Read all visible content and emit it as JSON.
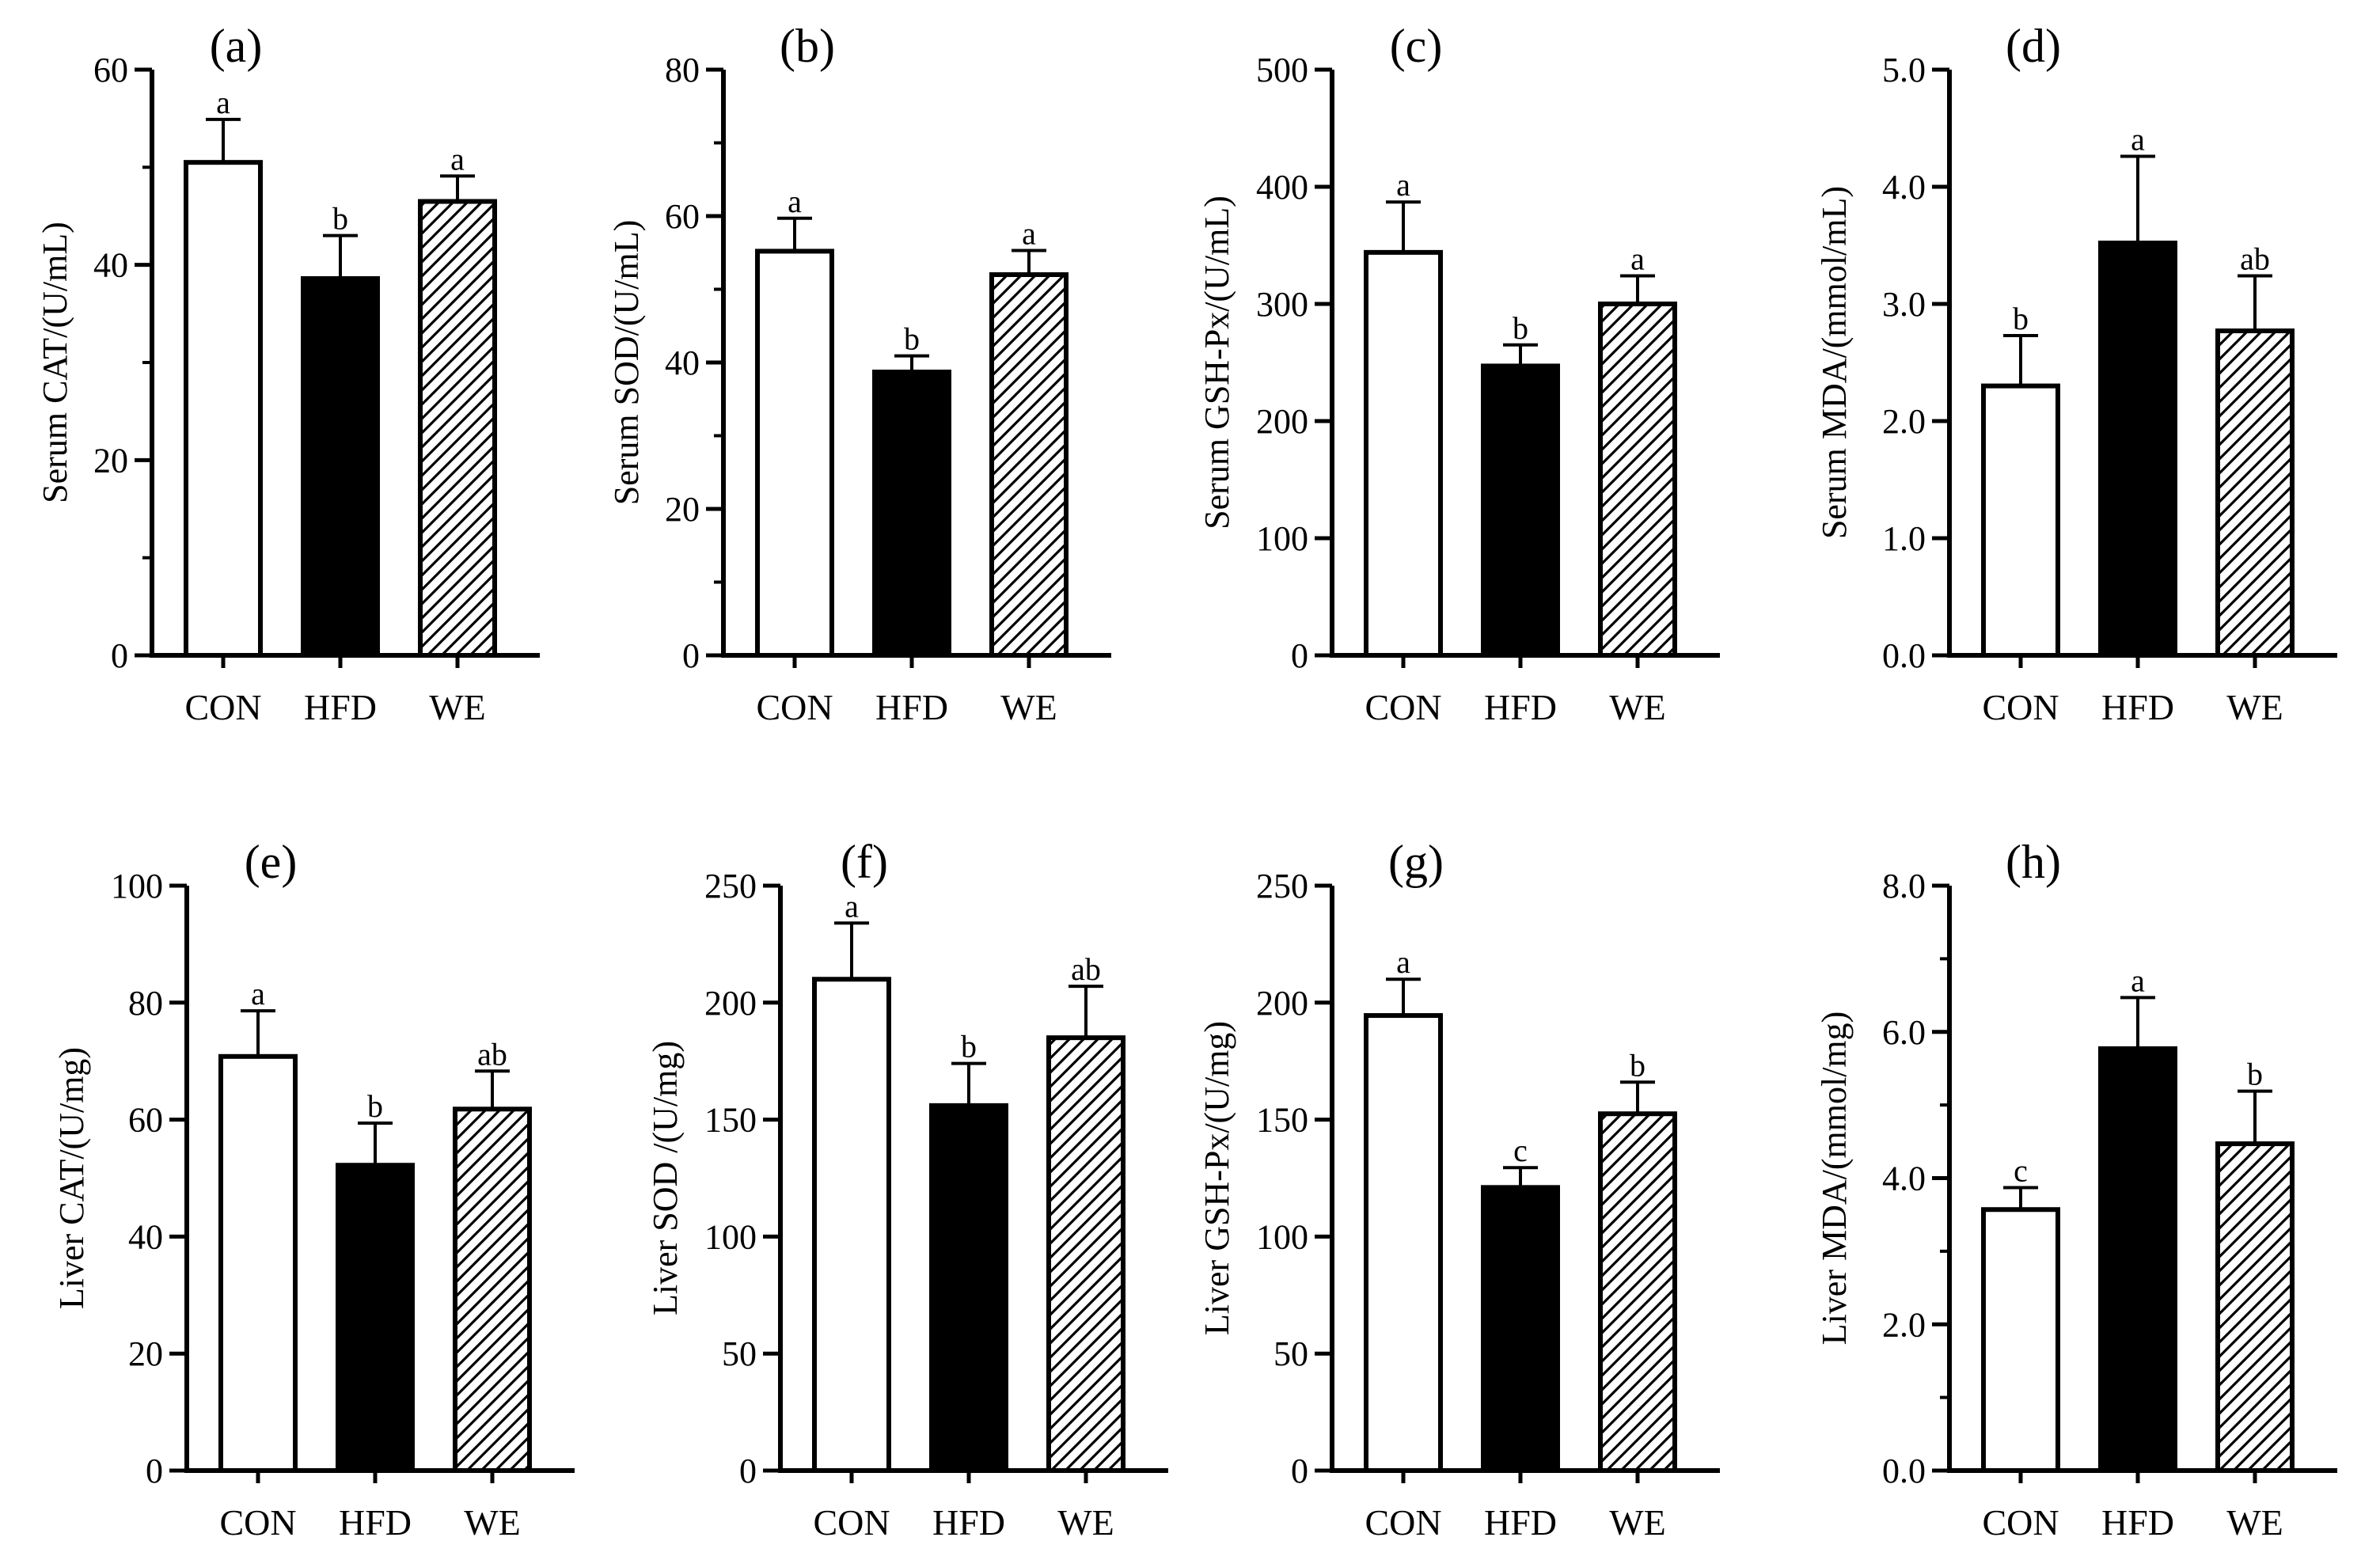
{
  "figure": {
    "background": "#ffffff",
    "ink": "#000000",
    "bar_fills": [
      "#ffffff",
      "#000000",
      "hatch"
    ]
  },
  "chart_data": [
    {
      "panel": "(a)",
      "type": "bar",
      "ylabel": "Serum CAT/(U/mL)",
      "categories": [
        "CON",
        "HFD",
        "WE"
      ],
      "values": [
        50.5,
        38.6,
        46.5
      ],
      "errors": [
        4.4,
        4.4,
        2.6
      ],
      "letters": [
        "a",
        "b",
        "a"
      ],
      "ylim": [
        0,
        60
      ],
      "yticks": [
        0,
        20,
        40,
        60
      ],
      "ytick_labels": [
        "0",
        "20",
        "40",
        "60"
      ],
      "minor_ticks": 2
    },
    {
      "panel": "(b)",
      "type": "bar",
      "ylabel": "Serum SOD/(U/mL)",
      "categories": [
        "CON",
        "HFD",
        "WE"
      ],
      "values": [
        55.2,
        38.7,
        52.0
      ],
      "errors": [
        4.5,
        2.2,
        3.3
      ],
      "letters": [
        "a",
        "b",
        "a"
      ],
      "ylim": [
        0,
        80
      ],
      "yticks": [
        0,
        20,
        40,
        60,
        80
      ],
      "ytick_labels": [
        "0",
        "20",
        "40",
        "60",
        "80"
      ],
      "minor_ticks": 2
    },
    {
      "panel": "(c)",
      "type": "bar",
      "ylabel": "Serum GSH-Px/(U/mL)",
      "categories": [
        "CON",
        "HFD",
        "WE"
      ],
      "values": [
        344,
        247,
        300
      ],
      "errors": [
        43,
        18,
        24
      ],
      "letters": [
        "a",
        "b",
        "a"
      ],
      "ylim": [
        0,
        500
      ],
      "yticks": [
        0,
        100,
        200,
        300,
        400,
        500
      ],
      "ytick_labels": [
        "0",
        "100",
        "200",
        "300",
        "400",
        "500"
      ],
      "minor_ticks": 0
    },
    {
      "panel": "(d)",
      "type": "bar",
      "ylabel": "Serum MDA/(mmol/mL)",
      "categories": [
        "CON",
        "HFD",
        "WE"
      ],
      "values": [
        2.3,
        3.52,
        2.77
      ],
      "errors": [
        0.43,
        0.74,
        0.47
      ],
      "letters": [
        "b",
        "a",
        "ab"
      ],
      "ylim": [
        0,
        5
      ],
      "yticks": [
        0,
        1,
        2,
        3,
        4,
        5
      ],
      "ytick_labels": [
        "0.0",
        "1.0",
        "2.0",
        "3.0",
        "4.0",
        "5.0"
      ],
      "minor_ticks": 0
    },
    {
      "panel": "(e)",
      "type": "bar",
      "ylabel": "Liver CAT/(U/mg)",
      "categories": [
        "CON",
        "HFD",
        "WE"
      ],
      "values": [
        70.8,
        52.2,
        61.8
      ],
      "errors": [
        7.8,
        7.2,
        6.5
      ],
      "letters": [
        "a",
        "b",
        "ab"
      ],
      "ylim": [
        0,
        100
      ],
      "yticks": [
        0,
        20,
        40,
        60,
        80,
        100
      ],
      "ytick_labels": [
        "0",
        "20",
        "40",
        "60",
        "80",
        "100"
      ],
      "minor_ticks": 0
    },
    {
      "panel": "(f)",
      "type": "bar",
      "ylabel": "Liver SOD /(U/mg)",
      "categories": [
        "CON",
        "HFD",
        "WE"
      ],
      "values": [
        210,
        156,
        185
      ],
      "errors": [
        24,
        18,
        22
      ],
      "letters": [
        "a",
        "b",
        "ab"
      ],
      "ylim": [
        0,
        250
      ],
      "yticks": [
        0,
        50,
        100,
        150,
        200,
        250
      ],
      "ytick_labels": [
        "0",
        "50",
        "100",
        "150",
        "200",
        "250"
      ],
      "minor_ticks": 0
    },
    {
      "panel": "(g)",
      "type": "bar",
      "ylabel": "Liver GSH-Px/(U/mg)",
      "categories": [
        "CON",
        "HFD",
        "WE"
      ],
      "values": [
        194.5,
        121.0,
        152.5
      ],
      "errors": [
        15.5,
        8.5,
        13.5
      ],
      "letters": [
        "a",
        "c",
        "b"
      ],
      "ylim": [
        0,
        250
      ],
      "yticks": [
        0,
        50,
        100,
        150,
        200,
        250
      ],
      "ytick_labels": [
        "0",
        "50",
        "100",
        "150",
        "200",
        "250"
      ],
      "minor_ticks": 0
    },
    {
      "panel": "(h)",
      "type": "bar",
      "ylabel": "Liver MDA/(mmol/mg)",
      "categories": [
        "CON",
        "HFD",
        "WE"
      ],
      "values": [
        3.57,
        5.77,
        4.47
      ],
      "errors": [
        0.3,
        0.7,
        0.72
      ],
      "letters": [
        "c",
        "a",
        "b"
      ],
      "ylim": [
        0,
        8
      ],
      "yticks": [
        0,
        2,
        4,
        6,
        8
      ],
      "ytick_labels": [
        "0.0",
        "2.0",
        "4.0",
        "6.0",
        "8.0"
      ],
      "minor_ticks": 2
    }
  ]
}
